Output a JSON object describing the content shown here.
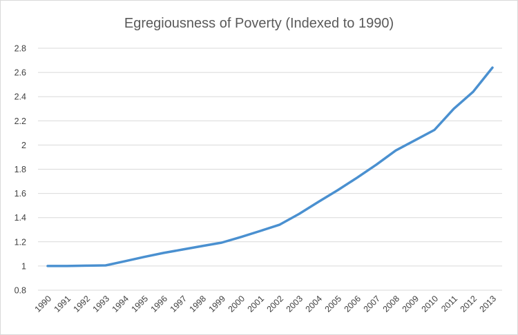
{
  "chart_data": {
    "type": "line",
    "title": "Egregiousness of Poverty (Indexed to 1990)",
    "xlabel": "",
    "ylabel": "",
    "categories": [
      "1990",
      "1991",
      "1992",
      "1993",
      "1994",
      "1995",
      "1996",
      "1997",
      "1998",
      "1999",
      "2000",
      "2001",
      "2002",
      "2003",
      "2004",
      "2005",
      "2006",
      "2007",
      "2008",
      "2009",
      "2010",
      "2011",
      "2012",
      "2013"
    ],
    "series": [
      {
        "values": [
          1.0,
          1.0,
          1.003,
          1.005,
          1.04,
          1.075,
          1.108,
          1.137,
          1.165,
          1.193,
          1.24,
          1.29,
          1.342,
          1.43,
          1.53,
          1.627,
          1.73,
          1.838,
          1.955,
          2.04,
          2.125,
          2.3,
          2.44,
          2.64
        ]
      }
    ],
    "ylim": [
      0.8,
      2.8
    ],
    "yticks": [
      "0.8",
      "1",
      "1.2",
      "1.4",
      "1.6",
      "1.8",
      "2",
      "2.2",
      "2.4",
      "2.6",
      "2.8"
    ],
    "grid": true,
    "legend": "none",
    "colors": {
      "series": "#4a90d0",
      "grid": "#d9d9d9"
    }
  }
}
